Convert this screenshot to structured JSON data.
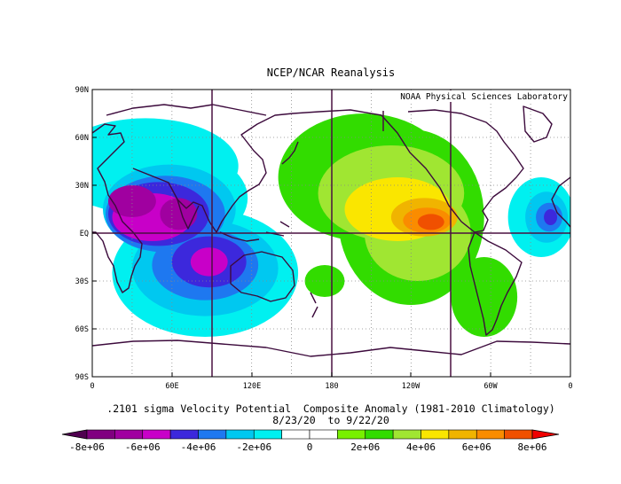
{
  "header": {
    "title": "NCEP/NCAR Reanalysis",
    "credit": "NOAA Physical Sciences Laboratory"
  },
  "caption": {
    "line1": ".2101 sigma Velocity Potential  Composite Anomaly (1981-2010 Climatology)",
    "line2": "8/23/20  to 9/22/20"
  },
  "axes": {
    "lat_ticks": [
      "90N",
      "60N",
      "30N",
      "EQ",
      "30S",
      "60S",
      "90S"
    ],
    "lon_ticks": [
      "0",
      "60E",
      "120E",
      "180",
      "120W",
      "60W",
      "0"
    ]
  },
  "colorbar": {
    "labels": [
      "-8e+06",
      "-6e+06",
      "-4e+06",
      "-2e+06",
      "0",
      "2e+06",
      "4e+06",
      "6e+06",
      "8e+06"
    ],
    "colors": [
      "#800080",
      "#a000a0",
      "#c800c8",
      "#3c28dc",
      "#1e78f0",
      "#00c8f0",
      "#00f0f0",
      "#ffffff",
      "#ffffff",
      "#78f000",
      "#32dc00",
      "#a0e632",
      "#fae600",
      "#f0b400",
      "#fa8c00",
      "#f05000"
    ],
    "low_arrow_color": "#500050",
    "high_arrow_color": "#f00000"
  },
  "map": {
    "grid_color": "#4a1040",
    "coast_color": "#3c0a3c",
    "blobs": [
      {
        "lon": 62,
        "lat": 22,
        "rx": 55,
        "ry": 30,
        "color": "#00f0f0"
      },
      {
        "lon": 85,
        "lat": -25,
        "rx": 70,
        "ry": 40,
        "color": "#00f0f0"
      },
      {
        "lon": 40,
        "lat": 42,
        "rx": 70,
        "ry": 30,
        "color": "#00f0f0"
      },
      {
        "lon": 58,
        "lat": 15,
        "rx": 50,
        "ry": 28,
        "color": "#00c8f0"
      },
      {
        "lon": 85,
        "lat": -22,
        "rx": 55,
        "ry": 30,
        "color": "#00c8f0"
      },
      {
        "lon": 55,
        "lat": 12,
        "rx": 45,
        "ry": 24,
        "color": "#1e78f0"
      },
      {
        "lon": 85,
        "lat": -20,
        "rx": 40,
        "ry": 22,
        "color": "#1e78f0"
      },
      {
        "lon": 50,
        "lat": 12,
        "rx": 38,
        "ry": 20,
        "color": "#3c28dc"
      },
      {
        "lon": 88,
        "lat": -18,
        "rx": 28,
        "ry": 16,
        "color": "#3c28dc"
      },
      {
        "lon": 45,
        "lat": 10,
        "rx": 30,
        "ry": 15,
        "color": "#c800c8"
      },
      {
        "lon": 88,
        "lat": -18,
        "rx": 14,
        "ry": 9,
        "color": "#c800c8"
      },
      {
        "lon": 30,
        "lat": 20,
        "rx": 18,
        "ry": 10,
        "color": "#a000a0"
      },
      {
        "lon": 65,
        "lat": 12,
        "rx": 14,
        "ry": 10,
        "color": "#a000a0"
      },
      {
        "lon": 205,
        "lat": 35,
        "rx": 65,
        "ry": 40,
        "color": "#32dc00"
      },
      {
        "lon": 240,
        "lat": 10,
        "rx": 55,
        "ry": 55,
        "color": "#32dc00"
      },
      {
        "lon": 295,
        "lat": -40,
        "rx": 25,
        "ry": 25,
        "color": "#32dc00"
      },
      {
        "lon": 175,
        "lat": -30,
        "rx": 15,
        "ry": 10,
        "color": "#32dc00"
      },
      {
        "lon": 225,
        "lat": 25,
        "rx": 55,
        "ry": 30,
        "color": "#a0e632"
      },
      {
        "lon": 245,
        "lat": 0,
        "rx": 40,
        "ry": 30,
        "color": "#a0e632"
      },
      {
        "lon": 230,
        "lat": 15,
        "rx": 40,
        "ry": 20,
        "color": "#fae600"
      },
      {
        "lon": 250,
        "lat": 10,
        "rx": 25,
        "ry": 12,
        "color": "#f0b400"
      },
      {
        "lon": 252,
        "lat": 8,
        "rx": 18,
        "ry": 8,
        "color": "#fa8c00"
      },
      {
        "lon": 255,
        "lat": 7,
        "rx": 10,
        "ry": 5,
        "color": "#f05000"
      },
      {
        "lon": 338,
        "lat": 10,
        "rx": 25,
        "ry": 25,
        "color": "#00f0f0"
      },
      {
        "lon": 342,
        "lat": 10,
        "rx": 16,
        "ry": 16,
        "color": "#00c8f0"
      },
      {
        "lon": 344,
        "lat": 10,
        "rx": 10,
        "ry": 9,
        "color": "#1e78f0"
      },
      {
        "lon": 345,
        "lat": 10,
        "rx": 5,
        "ry": 5,
        "color": "#3c28dc"
      }
    ]
  }
}
